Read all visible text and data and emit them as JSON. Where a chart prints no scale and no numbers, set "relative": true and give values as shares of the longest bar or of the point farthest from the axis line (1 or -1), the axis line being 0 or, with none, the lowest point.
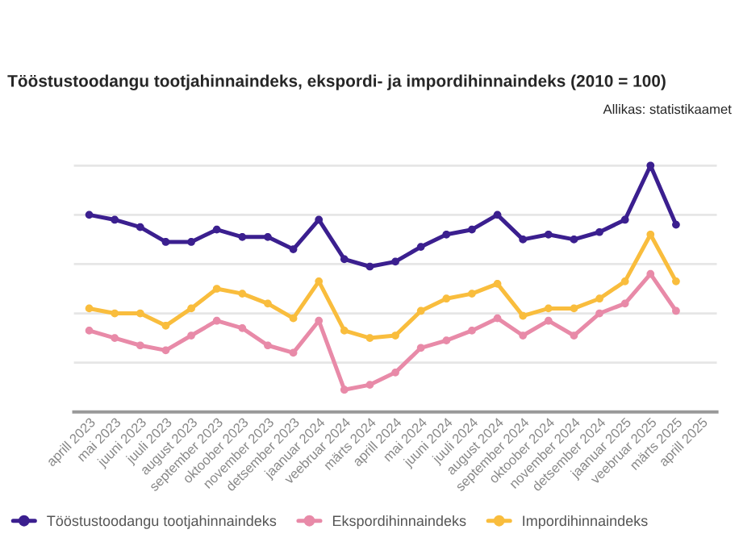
{
  "chart_data": {
    "type": "line",
    "title": "Tööstustoodangu tootjahinnaindeks, ekspordi- ja impordihinnaindeks (2010 = 100)",
    "annotations": [
      "Allikas: statistikaamet"
    ],
    "relative": true,
    "categories": [
      "aprill 2023",
      "mai 2023",
      "juuni 2023",
      "juuli 2023",
      "august 2023",
      "september 2023",
      "oktoober 2023",
      "november 2023",
      "detsember 2023",
      "jaanuar 2024",
      "veebruar 2024",
      "märts 2024",
      "aprill 2024",
      "mai 2024",
      "juuni 2024",
      "juuli 2024",
      "august 2024",
      "september 2024",
      "oktoober 2024",
      "november 2024",
      "detsember 2024",
      "jaanuar 2025",
      "veebruar 2025",
      "märts 2025",
      "aprill 2025"
    ],
    "series": [
      {
        "name": "Tööstustoodangu tootjahinnaindeks",
        "color": "#3b1f8f",
        "values": [
          0.8,
          0.78,
          0.75,
          0.69,
          0.69,
          0.74,
          0.71,
          0.71,
          0.66,
          0.78,
          0.62,
          0.59,
          0.61,
          0.67,
          0.72,
          0.74,
          0.8,
          0.7,
          0.72,
          0.7,
          0.73,
          0.78,
          1.0,
          0.76,
          null
        ]
      },
      {
        "name": "Ekspordihinnaindeks",
        "color": "#e88aa8",
        "values": [
          0.33,
          0.3,
          0.27,
          0.25,
          0.31,
          0.37,
          0.34,
          0.27,
          0.24,
          0.37,
          0.09,
          0.11,
          0.16,
          0.26,
          0.29,
          0.33,
          0.38,
          0.31,
          0.37,
          0.31,
          0.4,
          0.44,
          0.56,
          0.41,
          null
        ]
      },
      {
        "name": "Impordihinnaindeks",
        "color": "#f9bd3d",
        "values": [
          0.42,
          0.4,
          0.4,
          0.35,
          0.42,
          0.5,
          0.48,
          0.44,
          0.38,
          0.53,
          0.33,
          0.3,
          0.31,
          0.41,
          0.46,
          0.48,
          0.52,
          0.39,
          0.42,
          0.42,
          0.46,
          0.53,
          0.72,
          0.53,
          null
        ]
      }
    ],
    "marker": "circle",
    "line_style": "solid",
    "grid": "y",
    "legend": "bottom"
  }
}
